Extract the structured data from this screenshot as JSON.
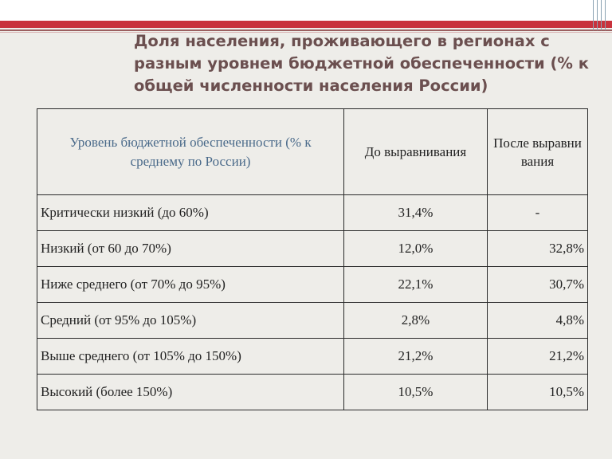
{
  "title": "Доля населения, проживающего в регионах с разным уровнем бюджетной обеспеченности (% к общей численности населения России)",
  "columns": {
    "level": "Уровень бюджетной обеспеченности (% к среднему по России)",
    "before": "До выравнивания",
    "after": "После выравни вания"
  },
  "rows": [
    {
      "label": "Критически низкий (до 60%)",
      "before": "31,4%",
      "after": "-"
    },
    {
      "label": "Низкий (от 60 до 70%)",
      "before": "12,0%",
      "after": "32,8%"
    },
    {
      "label": "Ниже среднего (от 70% до 95%)",
      "before": "22,1%",
      "after": "30,7%"
    },
    {
      "label": "Средний (от 95% до 105%)",
      "before": "2,8%",
      "after": "4,8%"
    },
    {
      "label": "Выше среднего (от 105% до 150%)",
      "before": "21,2%",
      "after": "21,2%"
    },
    {
      "label": "Высокий (более 150%)",
      "before": "10,5%",
      "after": "10,5%"
    }
  ],
  "colors": {
    "accent_bar": "#c8323c",
    "title_text": "#6b4f4f",
    "value_text": "#4a6a8a"
  }
}
